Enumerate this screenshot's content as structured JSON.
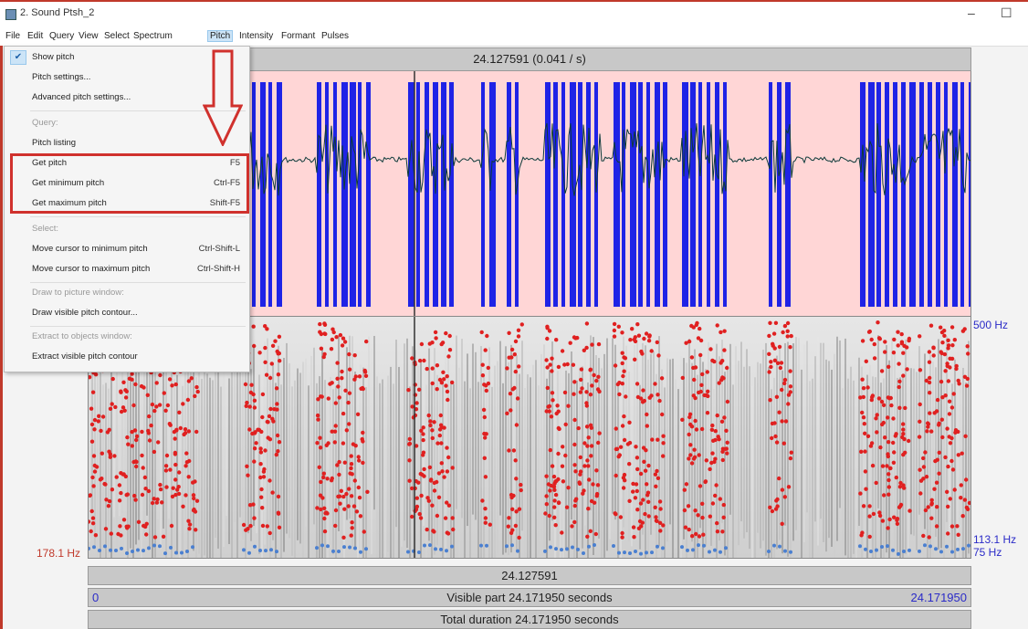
{
  "window": {
    "title": "2. Sound Ptsh_2",
    "minimize_glyph": "–",
    "maximize_glyph": "☐"
  },
  "menubar": [
    "File",
    "Edit",
    "Query",
    "View",
    "Select",
    "Spectrum",
    "Pitch",
    "Intensity",
    "Formant",
    "Pulses"
  ],
  "active_menu": "Pitch",
  "time_header": "24.127591 (0.041 / s)",
  "spectrogram": {
    "top_label": "500 Hz",
    "right_mid_label": "113.1 Hz",
    "right_bottom_label": "75 Hz",
    "left_label": "178.1 Hz"
  },
  "bottom": {
    "cursor_time": "24.127591",
    "visible_start": "0",
    "visible_label": "Visible part 24.171950 seconds",
    "visible_end": "24.171950",
    "total_label": "Total duration 24.171950 seconds"
  },
  "pitch_menu": {
    "show_pitch": "Show pitch",
    "pitch_settings": "Pitch settings...",
    "advanced_settings": "Advanced pitch settings...",
    "query_header": "Query:",
    "pitch_listing": "Pitch listing",
    "get_pitch": "Get pitch",
    "get_pitch_sc": "F5",
    "get_min": "Get minimum pitch",
    "get_min_sc": "Ctrl-F5",
    "get_max": "Get maximum pitch",
    "get_max_sc": "Shift-F5",
    "select_header": "Select:",
    "move_min": "Move cursor to minimum pitch",
    "move_min_sc": "Ctrl-Shift-L",
    "move_max": "Move cursor to maximum pitch",
    "move_max_sc": "Ctrl-Shift-H",
    "draw_header": "Draw to picture window:",
    "draw_contour": "Draw visible pitch contour...",
    "extract_header": "Extract to objects window:",
    "extract_contour": "Extract visible pitch contour"
  },
  "colors": {
    "waveform_bg": "#ffd6d6",
    "voiced_block": "#1f23e6",
    "pitch_dots": "#e02020",
    "highlight": "#d0312d"
  }
}
